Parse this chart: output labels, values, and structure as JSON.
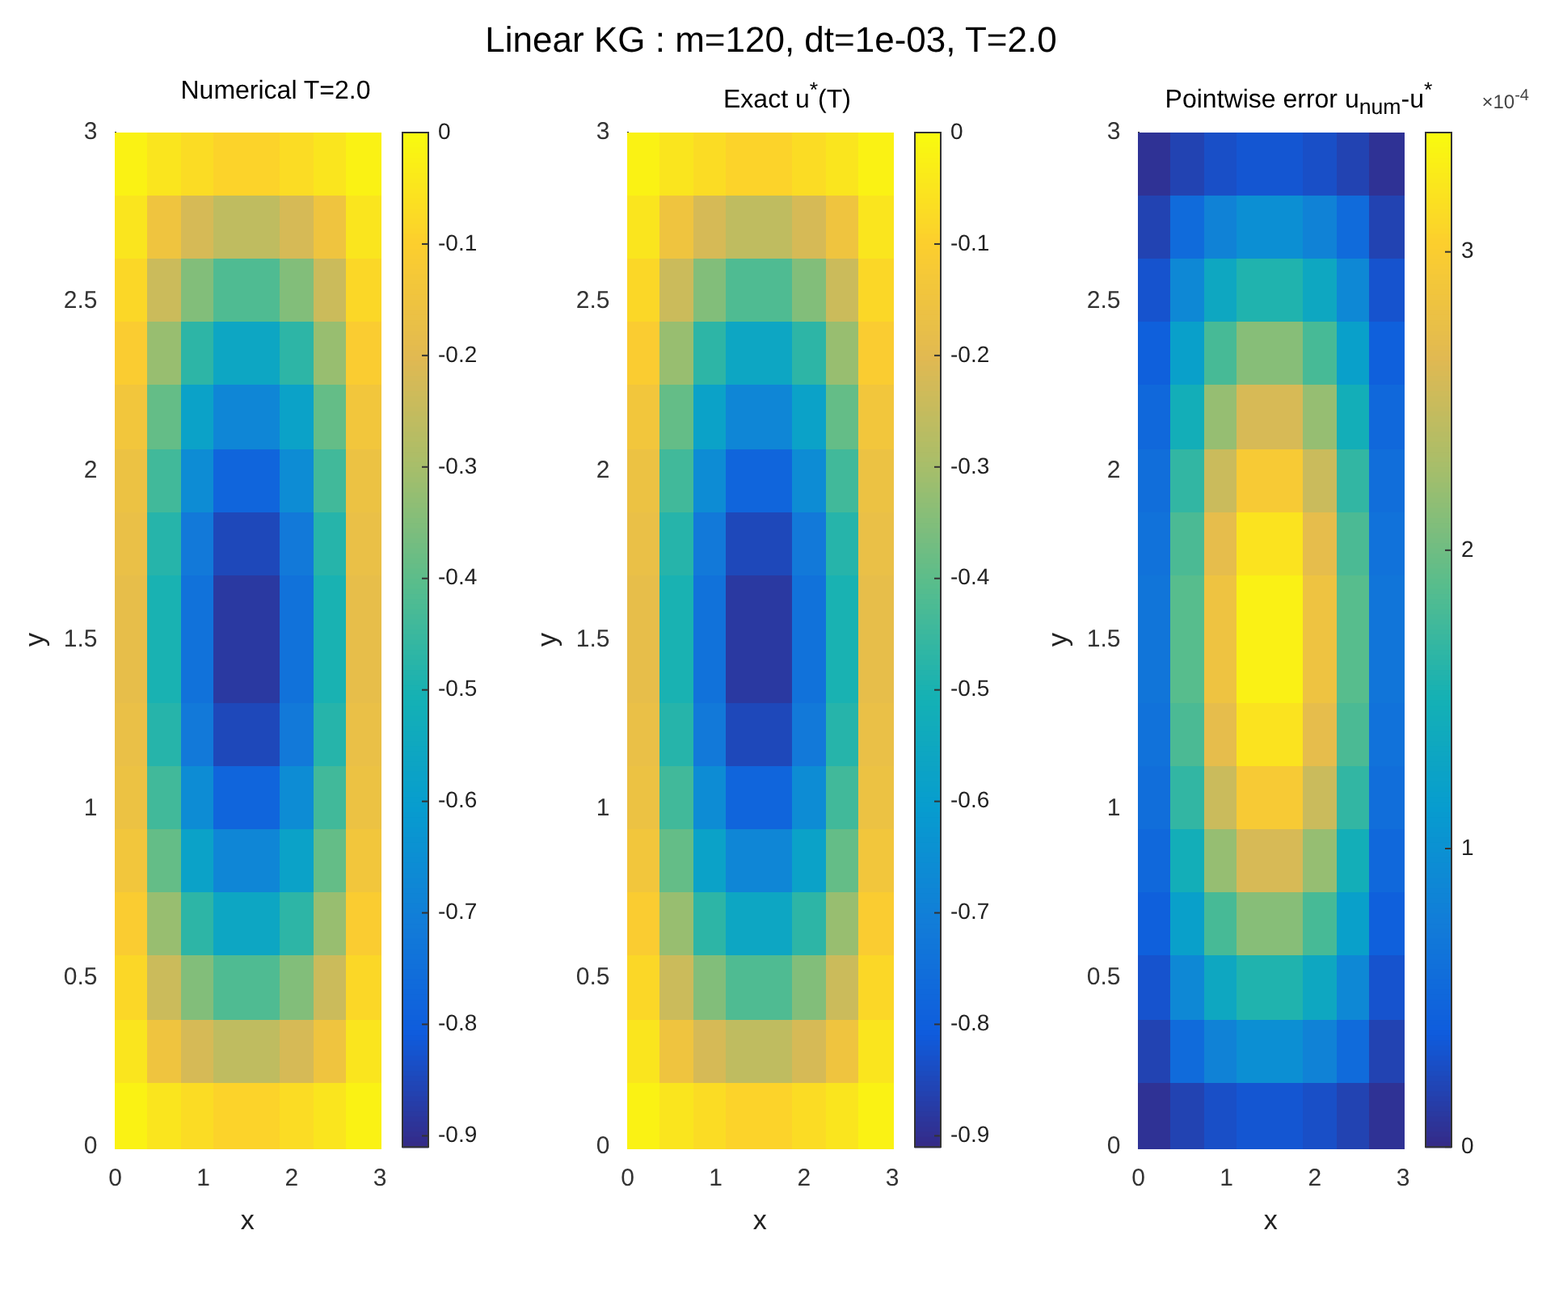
{
  "chart_data": [
    {
      "type": "other",
      "title": "Linear KG : m=120, dt=1e-03, T=2.0"
    },
    {
      "type": "heatmap",
      "title": "Numerical   T=2.0",
      "xlabel": "x",
      "ylabel": "y",
      "xlim": [
        0,
        3
      ],
      "xticks": [
        0,
        1,
        2,
        3
      ],
      "ylim": [
        0,
        3
      ],
      "yticks": [
        0,
        0.5,
        1,
        1.5,
        2,
        2.5,
        3
      ],
      "clim": [
        -0.91,
        0
      ],
      "cticks": [
        -0.9,
        -0.8,
        -0.7,
        -0.6,
        -0.5,
        -0.4,
        -0.3,
        -0.2,
        -0.1,
        0
      ],
      "cells": [
        [
          -0.02,
          -0.05,
          -0.07,
          -0.09,
          -0.09,
          -0.07,
          -0.05,
          -0.02
        ],
        [
          -0.05,
          -0.15,
          -0.22,
          -0.26,
          -0.26,
          -0.22,
          -0.15,
          -0.05
        ],
        [
          -0.08,
          -0.24,
          -0.35,
          -0.42,
          -0.42,
          -0.35,
          -0.24,
          -0.08
        ],
        [
          -0.11,
          -0.32,
          -0.47,
          -0.56,
          -0.56,
          -0.47,
          -0.32,
          -0.11
        ],
        [
          -0.14,
          -0.39,
          -0.58,
          -0.68,
          -0.68,
          -0.58,
          -0.39,
          -0.14
        ],
        [
          -0.16,
          -0.44,
          -0.66,
          -0.78,
          -0.78,
          -0.66,
          -0.44,
          -0.16
        ],
        [
          -0.17,
          -0.48,
          -0.72,
          -0.85,
          -0.85,
          -0.72,
          -0.48,
          -0.17
        ],
        [
          -0.18,
          -0.5,
          -0.74,
          -0.88,
          -0.88,
          -0.74,
          -0.5,
          -0.18
        ],
        [
          -0.18,
          -0.5,
          -0.74,
          -0.88,
          -0.88,
          -0.74,
          -0.5,
          -0.18
        ],
        [
          -0.17,
          -0.48,
          -0.72,
          -0.85,
          -0.85,
          -0.72,
          -0.48,
          -0.17
        ],
        [
          -0.16,
          -0.44,
          -0.66,
          -0.78,
          -0.78,
          -0.66,
          -0.44,
          -0.16
        ],
        [
          -0.14,
          -0.39,
          -0.58,
          -0.68,
          -0.68,
          -0.58,
          -0.39,
          -0.14
        ],
        [
          -0.11,
          -0.32,
          -0.47,
          -0.56,
          -0.56,
          -0.47,
          -0.32,
          -0.11
        ],
        [
          -0.08,
          -0.24,
          -0.35,
          -0.42,
          -0.42,
          -0.35,
          -0.24,
          -0.08
        ],
        [
          -0.05,
          -0.15,
          -0.22,
          -0.26,
          -0.26,
          -0.22,
          -0.15,
          -0.05
        ],
        [
          -0.02,
          -0.05,
          -0.07,
          -0.09,
          -0.09,
          -0.07,
          -0.05,
          -0.02
        ]
      ]
    },
    {
      "type": "heatmap",
      "title": "Exact  u$^{*}$(T)",
      "xlabel": "x",
      "ylabel": "y",
      "xlim": [
        0,
        3
      ],
      "xticks": [
        0,
        1,
        2,
        3
      ],
      "ylim": [
        0,
        3
      ],
      "yticks": [
        0,
        0.5,
        1,
        1.5,
        2,
        2.5,
        3
      ],
      "clim": [
        -0.91,
        0
      ],
      "cticks": [
        -0.9,
        -0.8,
        -0.7,
        -0.6,
        -0.5,
        -0.4,
        -0.3,
        -0.2,
        -0.1,
        0
      ],
      "cells": [
        [
          -0.02,
          -0.05,
          -0.07,
          -0.09,
          -0.09,
          -0.07,
          -0.05,
          -0.02
        ],
        [
          -0.05,
          -0.15,
          -0.22,
          -0.26,
          -0.26,
          -0.22,
          -0.15,
          -0.05
        ],
        [
          -0.08,
          -0.24,
          -0.35,
          -0.42,
          -0.42,
          -0.35,
          -0.24,
          -0.08
        ],
        [
          -0.11,
          -0.32,
          -0.47,
          -0.56,
          -0.56,
          -0.47,
          -0.32,
          -0.11
        ],
        [
          -0.14,
          -0.39,
          -0.58,
          -0.68,
          -0.68,
          -0.58,
          -0.39,
          -0.14
        ],
        [
          -0.16,
          -0.44,
          -0.66,
          -0.78,
          -0.78,
          -0.66,
          -0.44,
          -0.16
        ],
        [
          -0.17,
          -0.48,
          -0.72,
          -0.85,
          -0.85,
          -0.72,
          -0.48,
          -0.17
        ],
        [
          -0.18,
          -0.5,
          -0.74,
          -0.88,
          -0.88,
          -0.74,
          -0.5,
          -0.18
        ],
        [
          -0.18,
          -0.5,
          -0.74,
          -0.88,
          -0.88,
          -0.74,
          -0.5,
          -0.18
        ],
        [
          -0.17,
          -0.48,
          -0.72,
          -0.85,
          -0.85,
          -0.72,
          -0.48,
          -0.17
        ],
        [
          -0.16,
          -0.44,
          -0.66,
          -0.78,
          -0.78,
          -0.66,
          -0.44,
          -0.16
        ],
        [
          -0.14,
          -0.39,
          -0.58,
          -0.68,
          -0.68,
          -0.58,
          -0.39,
          -0.14
        ],
        [
          -0.11,
          -0.32,
          -0.47,
          -0.56,
          -0.56,
          -0.47,
          -0.32,
          -0.11
        ],
        [
          -0.08,
          -0.24,
          -0.35,
          -0.42,
          -0.42,
          -0.35,
          -0.24,
          -0.08
        ],
        [
          -0.05,
          -0.15,
          -0.22,
          -0.26,
          -0.26,
          -0.22,
          -0.15,
          -0.05
        ],
        [
          -0.02,
          -0.05,
          -0.07,
          -0.09,
          -0.09,
          -0.07,
          -0.05,
          -0.02
        ]
      ]
    },
    {
      "type": "heatmap",
      "title": "Pointwise error  u$_{num}$-u$^{*}$",
      "xlabel": "x",
      "ylabel": "y",
      "clabel": "×10$^{-4}$",
      "xlim": [
        0,
        3
      ],
      "xticks": [
        0,
        1,
        2,
        3
      ],
      "ylim": [
        0,
        3
      ],
      "yticks": [
        0,
        0.5,
        1,
        1.5,
        2,
        2.5,
        3
      ],
      "clim": [
        0,
        3.4
      ],
      "cticks": [
        0,
        1,
        2,
        3
      ],
      "cells": [
        [
          0.06,
          0.19,
          0.28,
          0.33,
          0.33,
          0.28,
          0.19,
          0.06
        ],
        [
          0.19,
          0.55,
          0.82,
          0.97,
          0.97,
          0.82,
          0.55,
          0.19
        ],
        [
          0.31,
          0.89,
          1.33,
          1.57,
          1.57,
          1.33,
          0.89,
          0.31
        ],
        [
          0.42,
          1.2,
          1.79,
          2.12,
          2.12,
          1.79,
          1.2,
          0.42
        ],
        [
          0.51,
          1.46,
          2.19,
          2.58,
          2.58,
          2.19,
          1.46,
          0.51
        ],
        [
          0.58,
          1.67,
          2.5,
          2.95,
          2.95,
          2.5,
          1.67,
          0.58
        ],
        [
          0.63,
          1.81,
          2.71,
          3.2,
          3.2,
          2.71,
          1.81,
          0.63
        ],
        [
          0.66,
          1.88,
          2.82,
          3.32,
          3.32,
          2.82,
          1.88,
          0.66
        ],
        [
          0.66,
          1.88,
          2.82,
          3.32,
          3.32,
          2.82,
          1.88,
          0.66
        ],
        [
          0.63,
          1.81,
          2.71,
          3.2,
          3.2,
          2.71,
          1.81,
          0.63
        ],
        [
          0.58,
          1.67,
          2.5,
          2.95,
          2.95,
          2.5,
          1.67,
          0.58
        ],
        [
          0.51,
          1.46,
          2.19,
          2.58,
          2.58,
          2.19,
          1.46,
          0.51
        ],
        [
          0.42,
          1.2,
          1.79,
          2.12,
          2.12,
          1.79,
          1.2,
          0.42
        ],
        [
          0.31,
          0.89,
          1.33,
          1.57,
          1.57,
          1.33,
          0.89,
          0.31
        ],
        [
          0.19,
          0.55,
          0.82,
          0.97,
          0.97,
          0.82,
          0.55,
          0.19
        ],
        [
          0.06,
          0.19,
          0.28,
          0.33,
          0.33,
          0.28,
          0.19,
          0.06
        ]
      ]
    }
  ]
}
